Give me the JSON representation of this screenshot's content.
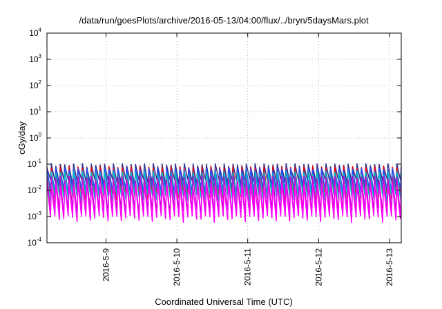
{
  "chart_data": {
    "type": "line",
    "title": "/data/run/goesPlots/archive/2016-05-13/04:00/flux/../bryn/5daysMars.plot",
    "xlabel": "Coordinated Universal Time (UTC)",
    "ylabel": "cGy/day",
    "y_scale": "log",
    "ylim": [
      0.0001,
      10000
    ],
    "xlim": [
      "2016-05-08 04:00",
      "2016-05-13 04:00"
    ],
    "y_ticks": [
      {
        "base": "10",
        "exp": "-4",
        "value": 0.0001
      },
      {
        "base": "10",
        "exp": "-3",
        "value": 0.001
      },
      {
        "base": "10",
        "exp": "-2",
        "value": 0.01
      },
      {
        "base": "10",
        "exp": "-1",
        "value": 0.1
      },
      {
        "base": "10",
        "exp": "0",
        "value": 1
      },
      {
        "base": "10",
        "exp": "1",
        "value": 10
      },
      {
        "base": "10",
        "exp": "2",
        "value": 100
      },
      {
        "base": "10",
        "exp": "3",
        "value": 1000
      },
      {
        "base": "10",
        "exp": "4",
        "value": 10000
      }
    ],
    "x_ticks": [
      {
        "label": "2016-5-9",
        "value": "2016-05-09 00:00"
      },
      {
        "label": "2016-5-10",
        "value": "2016-05-10 00:00"
      },
      {
        "label": "2016-5-11",
        "value": "2016-05-11 00:00"
      },
      {
        "label": "2016-5-12",
        "value": "2016-05-12 00:00"
      },
      {
        "label": "2016-5-13",
        "value": "2016-05-13 00:00"
      }
    ],
    "grid": true,
    "series_colors": [
      "#ff0000",
      "#d000d0",
      "#00c0c0",
      "#2050ff",
      "#303090",
      "#ff00ff"
    ],
    "oscillation_period_hours": 1.5,
    "series": [
      {
        "color": "#303090",
        "peak": 0.09,
        "trough": 0.02
      },
      {
        "color": "#ff0000",
        "peak": 0.07,
        "trough": 0.006
      },
      {
        "color": "#2050ff",
        "peak": 0.06,
        "trough": 0.01
      },
      {
        "color": "#00c0c0",
        "peak": 0.045,
        "trough": 0.005
      },
      {
        "color": "#d000d0",
        "peak": 0.03,
        "trough": 0.0015
      },
      {
        "color": "#ff00ff",
        "peak": 0.015,
        "trough": 0.0008
      }
    ]
  }
}
